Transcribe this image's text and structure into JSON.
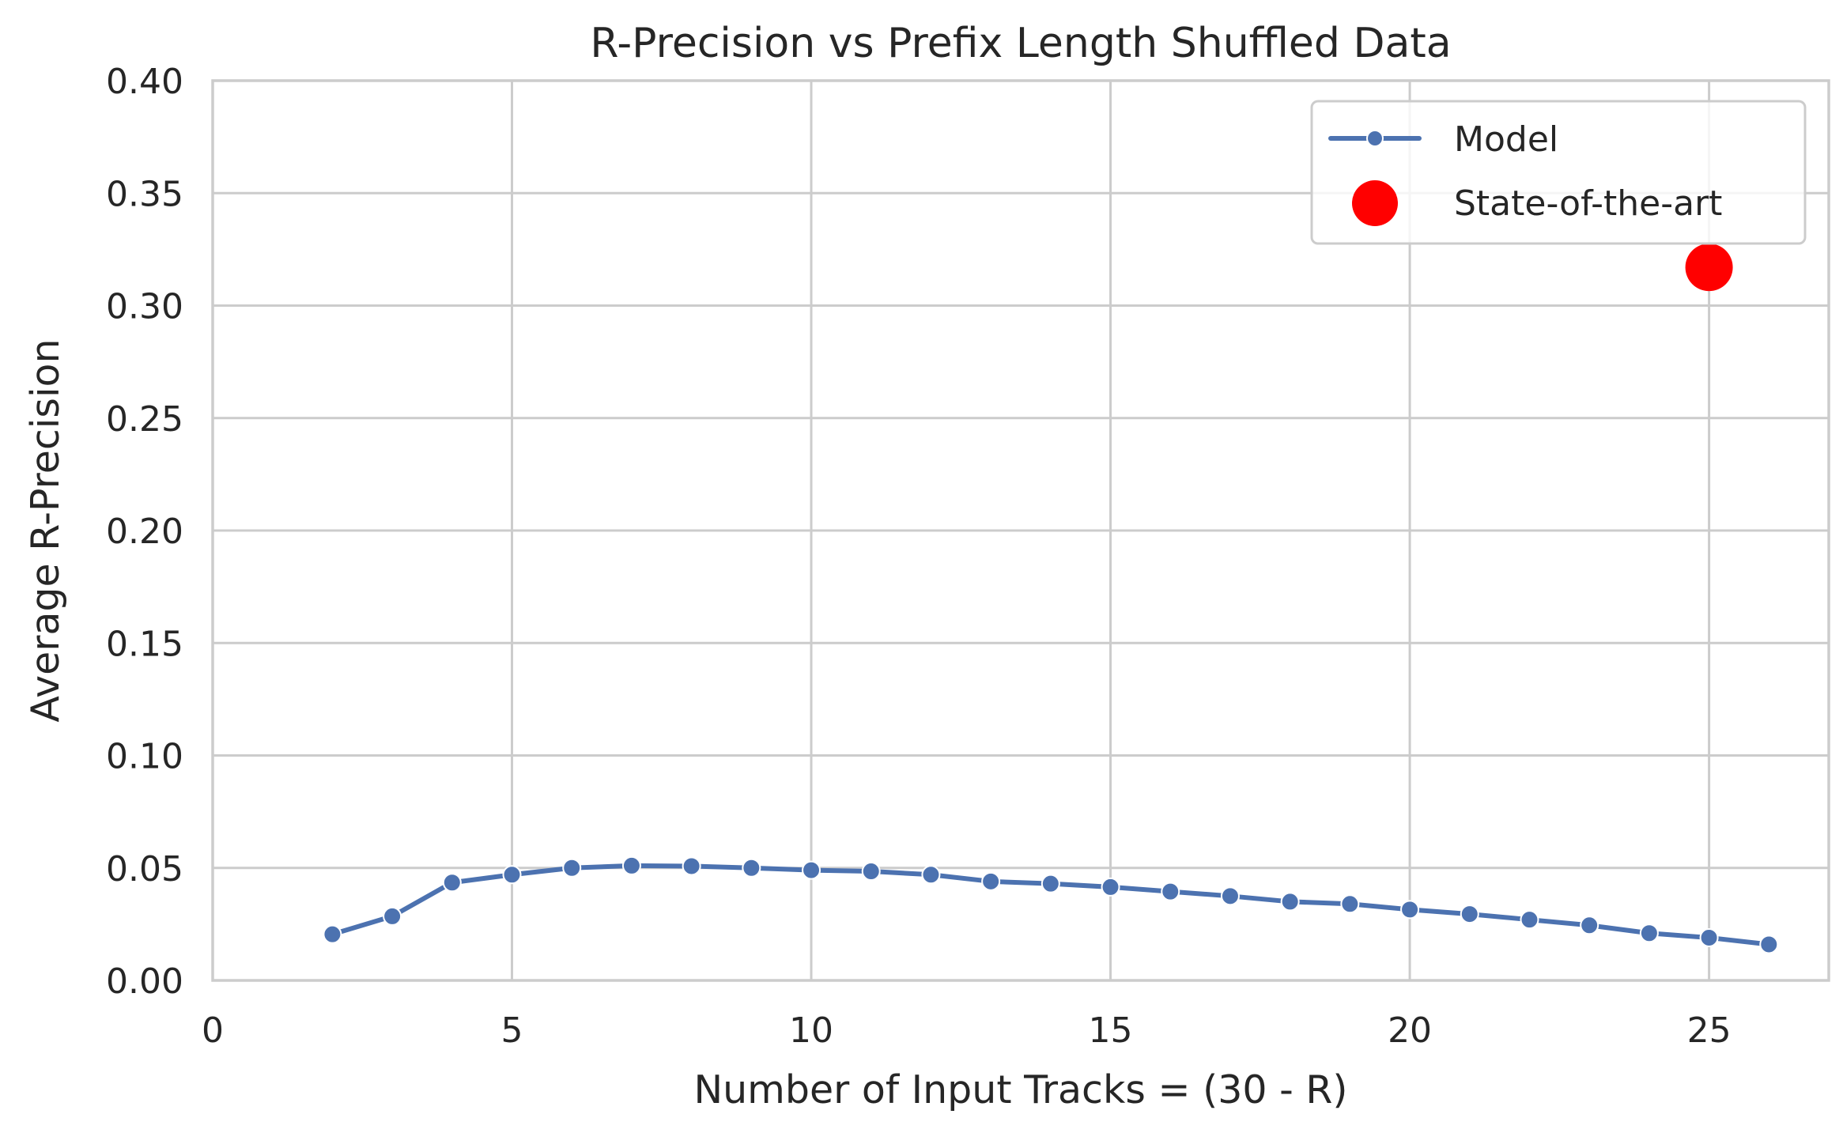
{
  "chart_data": {
    "type": "line",
    "title": "R-Precision vs Prefix Length Shuffled Data",
    "xlabel": "Number of Input Tracks = (30 - R)",
    "ylabel": "Average R-Precision",
    "xlim": [
      0,
      27
    ],
    "ylim": [
      0,
      0.4
    ],
    "xticks": [
      0,
      5,
      10,
      15,
      20,
      25
    ],
    "xtick_labels": [
      "0",
      "5",
      "10",
      "15",
      "20",
      "25"
    ],
    "yticks": [
      0,
      0.05,
      0.1,
      0.15,
      0.2,
      0.25,
      0.3,
      0.35,
      0.4
    ],
    "ytick_labels": [
      "0.00",
      "0.05",
      "0.10",
      "0.15",
      "0.20",
      "0.25",
      "0.30",
      "0.35",
      "0.40"
    ],
    "grid": true,
    "legend_position": "top-right",
    "series": [
      {
        "name": "Model",
        "kind": "line-with-markers",
        "color": "#4c72b0",
        "x": [
          2,
          3,
          4,
          5,
          6,
          7,
          8,
          9,
          10,
          11,
          12,
          13,
          14,
          15,
          16,
          17,
          18,
          19,
          20,
          21,
          22,
          23,
          24,
          25,
          26
        ],
        "y": [
          0.0205,
          0.0285,
          0.0435,
          0.047,
          0.05,
          0.051,
          0.0508,
          0.05,
          0.049,
          0.0485,
          0.047,
          0.044,
          0.043,
          0.0415,
          0.0395,
          0.0375,
          0.035,
          0.034,
          0.0315,
          0.0295,
          0.027,
          0.0245,
          0.021,
          0.019,
          0.016
        ]
      },
      {
        "name": "State-of-the-art",
        "kind": "scatter",
        "color": "#ff0000",
        "x": [
          25
        ],
        "y": [
          0.317
        ]
      }
    ]
  }
}
